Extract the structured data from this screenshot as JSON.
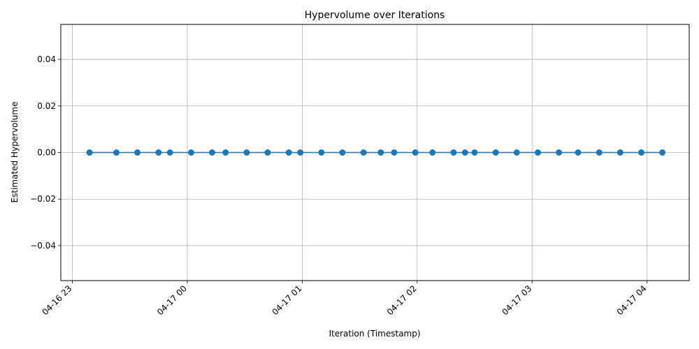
{
  "chart_data": {
    "type": "line",
    "title": "Hypervolume over Iterations",
    "xlabel": "Iteration (Timestamp)",
    "ylabel": "Estimated Hypervolume",
    "x_ticks": [
      "04-16 23",
      "04-17 00",
      "04-17 01",
      "04-17 02",
      "04-17 03",
      "04-17 04"
    ],
    "y_ticks": [
      "−0.04",
      "−0.02",
      "0.00",
      "0.02",
      "0.04"
    ],
    "xlim": [
      "04-16 22:54",
      "04-17 04:22"
    ],
    "ylim": [
      -0.055,
      0.055
    ],
    "grid": true,
    "color": "#1f77b4",
    "series": [
      {
        "x": [
          "04-16 23:09",
          "04-16 23:23",
          "04-16 23:34",
          "04-16 23:45",
          "04-16 23:51",
          "04-17 00:02",
          "04-17 00:13",
          "04-17 00:20",
          "04-17 00:31",
          "04-17 00:42",
          "04-17 00:53",
          "04-17 00:59",
          "04-17 01:10",
          "04-17 01:21",
          "04-17 01:32",
          "04-17 01:41",
          "04-17 01:48",
          "04-17 01:59",
          "04-17 02:08",
          "04-17 02:19",
          "04-17 02:25",
          "04-17 02:30",
          "04-17 02:41",
          "04-17 02:52",
          "04-17 03:03",
          "04-17 03:14",
          "04-17 03:24",
          "04-17 03:35",
          "04-17 03:46",
          "04-17 03:57",
          "04-17 04:08"
        ],
        "y": [
          0,
          0,
          0,
          0,
          0,
          0,
          0,
          0,
          0,
          0,
          0,
          0,
          0,
          0,
          0,
          0,
          0,
          0,
          0,
          0,
          0,
          0,
          0,
          0,
          0,
          0,
          0,
          0,
          0,
          0,
          0
        ]
      }
    ]
  }
}
